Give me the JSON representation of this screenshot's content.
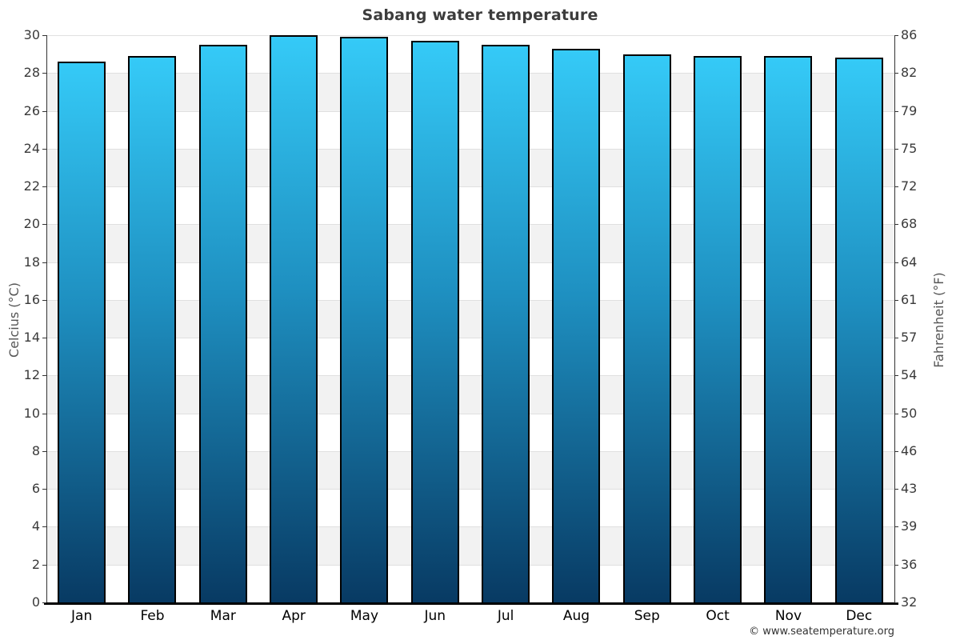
{
  "title": "Sabang water temperature",
  "copyright": "© www.seatemperature.org",
  "chart_data": {
    "type": "bar",
    "title": "Sabang water temperature",
    "categories": [
      "Jan",
      "Feb",
      "Mar",
      "Apr",
      "May",
      "Jun",
      "Jul",
      "Aug",
      "Sep",
      "Oct",
      "Nov",
      "Dec"
    ],
    "values": [
      28.6,
      28.9,
      29.5,
      30.0,
      29.9,
      29.7,
      29.5,
      29.3,
      29.0,
      28.9,
      28.9,
      28.8
    ],
    "unit": "°C",
    "xlabel": "",
    "ylabel_left": "Celcius (°C)",
    "ylabel_right": "Fahrenheit (°F)",
    "ylim": [
      0,
      30
    ],
    "ytick_step": 2,
    "yticks_celsius": [
      0,
      2,
      4,
      6,
      8,
      10,
      12,
      14,
      16,
      18,
      20,
      22,
      24,
      26,
      28,
      30
    ],
    "yticks_fahrenheit": [
      32,
      36,
      39,
      43,
      46,
      50,
      54,
      57,
      61,
      64,
      68,
      72,
      75,
      79,
      82,
      86
    ],
    "legend": "none",
    "grid": "horizontal gridlines every 2°C with alternating white/gray bands",
    "colors": {
      "bar_gradient_top": "#35caf7",
      "bar_gradient_mid": "#1e8fc0",
      "bar_gradient_bottom": "#083a63",
      "bar_border": "#000000",
      "band_gray": "#f2f2f2",
      "band_white": "#ffffff",
      "gridline": "#e0e0e0",
      "axis_line": "#333333",
      "bottom_axis": "#000000",
      "title_text": "#3c3c3c",
      "tick_text": "#3a3a3a",
      "month_text": "#000000",
      "axis_title_text": "#555555",
      "copyright_text": "#333333"
    }
  }
}
